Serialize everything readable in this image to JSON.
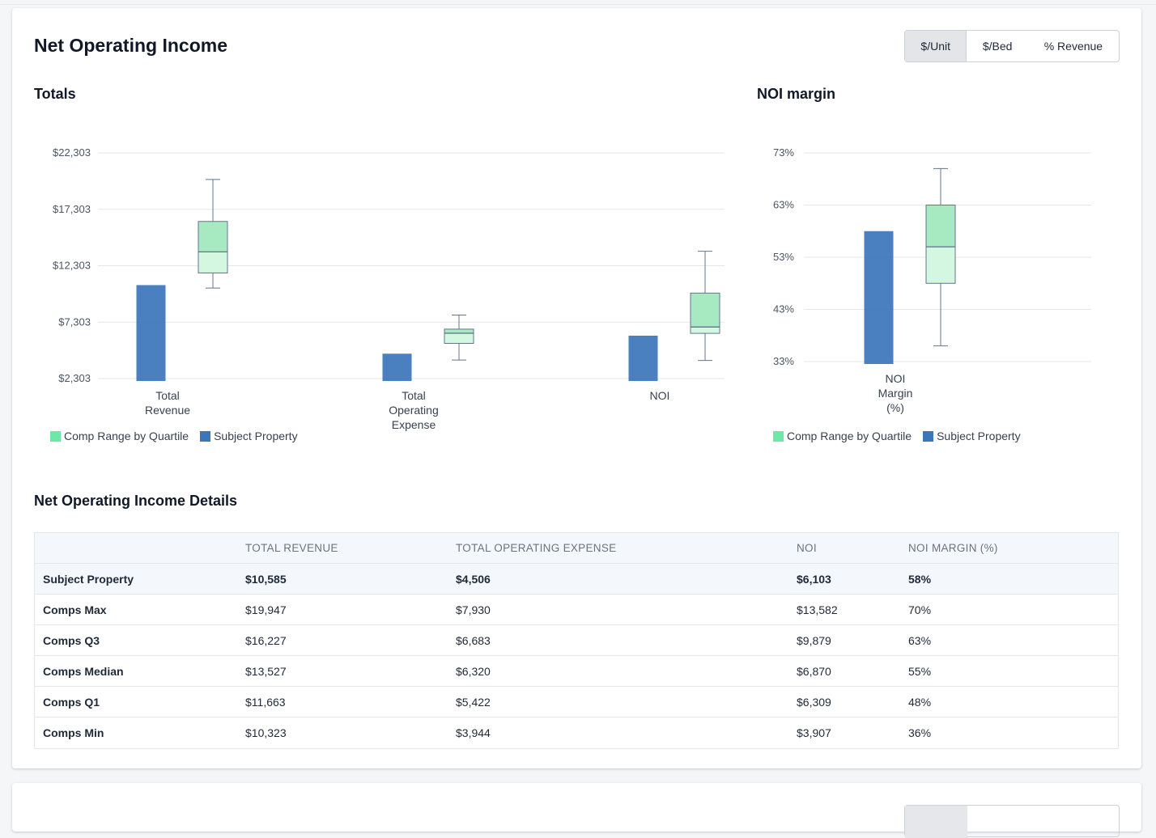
{
  "header": {
    "title": "Net Operating Income",
    "toggle_options": [
      {
        "label": "$/Unit",
        "active": true
      },
      {
        "label": "$/Bed",
        "active": false
      },
      {
        "label": "% Revenue",
        "active": false
      }
    ]
  },
  "totals_title": "Totals",
  "margin_title": "NOI margin",
  "legend": {
    "comp_label": "Comp Range by Quartile",
    "subject_label": "Subject Property",
    "comp_color": "#6ee7a8",
    "subject_color": "#3b75ba"
  },
  "chart_data": [
    {
      "type": "box",
      "title": "Totals",
      "ylim": [
        2303,
        22303
      ],
      "y_ticks": [
        "$22,303",
        "$17,303",
        "$12,303",
        "$7,303",
        "$2,303"
      ],
      "y_tick_values": [
        22303,
        17303,
        12303,
        7303,
        2303
      ],
      "categories": [
        [
          "Total",
          "Revenue"
        ],
        [
          "Total",
          "Operating",
          "Expense"
        ],
        [
          "NOI"
        ]
      ],
      "subject_values": [
        10585,
        4506,
        6103
      ],
      "comps": [
        {
          "min": 10323,
          "q1": 11663,
          "median": 13527,
          "q3": 16227,
          "max": 19947
        },
        {
          "min": 3944,
          "q1": 5422,
          "median": 6320,
          "q3": 6683,
          "max": 7930
        },
        {
          "min": 3907,
          "q1": 6309,
          "median": 6870,
          "q3": 9879,
          "max": 13582
        }
      ]
    },
    {
      "type": "box",
      "title": "NOI margin",
      "ylim": [
        33,
        73
      ],
      "y_ticks": [
        "73%",
        "63%",
        "53%",
        "43%",
        "33%"
      ],
      "y_tick_values": [
        73,
        63,
        53,
        43,
        33
      ],
      "categories": [
        [
          "NOI",
          "Margin",
          "(%)"
        ]
      ],
      "subject_values": [
        58
      ],
      "comps": [
        {
          "min": 36,
          "q1": 48,
          "median": 55,
          "q3": 63,
          "max": 70
        }
      ]
    }
  ],
  "details": {
    "title": "Net Operating Income Details",
    "columns": [
      "",
      "TOTAL REVENUE",
      "TOTAL OPERATING EXPENSE",
      "NOI",
      "NOI MARGIN (%)"
    ],
    "rows": [
      {
        "label": "Subject Property",
        "values": [
          "$10,585",
          "$4,506",
          "$6,103",
          "58%"
        ]
      },
      {
        "label": "Comps Max",
        "values": [
          "$19,947",
          "$7,930",
          "$13,582",
          "70%"
        ]
      },
      {
        "label": "Comps Q3",
        "values": [
          "$16,227",
          "$6,683",
          "$9,879",
          "63%"
        ]
      },
      {
        "label": "Comps Median",
        "values": [
          "$13,527",
          "$6,320",
          "$6,870",
          "55%"
        ]
      },
      {
        "label": "Comps Q1",
        "values": [
          "$11,663",
          "$5,422",
          "$6,309",
          "48%"
        ]
      },
      {
        "label": "Comps Min",
        "values": [
          "$10,323",
          "$3,944",
          "$3,907",
          "36%"
        ]
      }
    ]
  }
}
